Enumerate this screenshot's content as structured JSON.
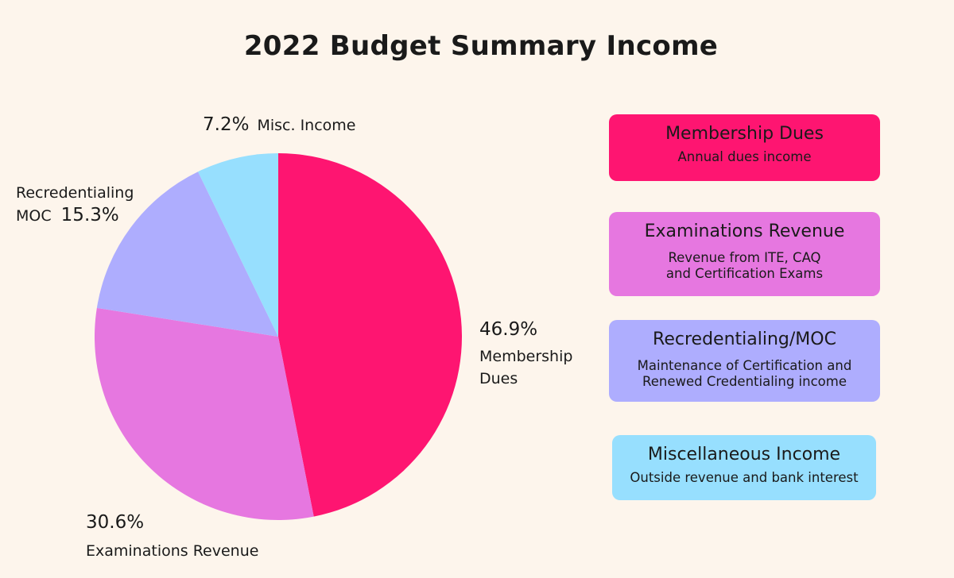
{
  "chart_data": {
    "type": "pie",
    "title": "2022 Budget Summary Income",
    "slices": [
      {
        "label": "Membership Dues",
        "value": 46.9,
        "display": "46.9%",
        "color": "#fe1571"
      },
      {
        "label": "Examinations Revenue",
        "value": 30.6,
        "display": "30.6%",
        "color": "#e677e0"
      },
      {
        "label": "Recredentialing MOC",
        "value": 15.3,
        "display": "15.3%",
        "color": "#aeadfe"
      },
      {
        "label": "Misc. Income",
        "value": 7.2,
        "display": "7.2%",
        "color": "#97dffe"
      }
    ]
  },
  "labels": {
    "membership": {
      "pct": "46.9%",
      "line1": "Membership",
      "line2": "Dues"
    },
    "examinations": {
      "pct": "30.6%",
      "name": "Examinations Revenue"
    },
    "recredentialing": {
      "line1": "Recredentialing",
      "line2": "MOC",
      "pct": "15.3%"
    },
    "misc": {
      "pct": "7.2%",
      "name": "Misc. Income"
    }
  },
  "legend": [
    {
      "title": "Membership Dues",
      "desc1": "Annual dues income",
      "desc2": "",
      "color": "#fe1571"
    },
    {
      "title": "Examinations Revenue",
      "desc1": "Revenue from ITE, CAQ",
      "desc2": "and Certification Exams",
      "color": "#e677e0"
    },
    {
      "title": "Recredentialing/MOC",
      "desc1": "Maintenance of Certification and",
      "desc2": "Renewed Credentialing income",
      "color": "#aeadfe"
    },
    {
      "title": "Miscellaneous Income",
      "desc1": "Outside revenue and bank interest",
      "desc2": "",
      "color": "#97dffe"
    }
  ]
}
